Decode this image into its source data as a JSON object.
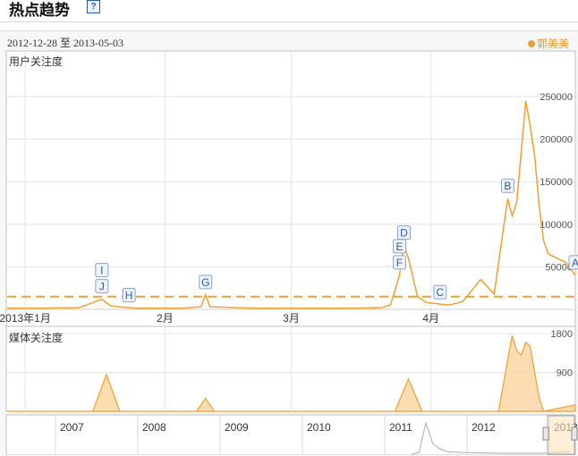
{
  "header": {
    "title": "热点趋势",
    "help_icon": "question-icon"
  },
  "date_range": "2012-12-28 至 2013-05-03",
  "legend": {
    "label": "郭美美",
    "color": "#f0a030"
  },
  "chart_data": [
    {
      "type": "line",
      "title": "用户关注度",
      "x_ticks": [
        "2013年1月",
        "2月",
        "3月",
        "4月"
      ],
      "y_ticks": [
        50000,
        100000,
        150000,
        200000,
        250000
      ],
      "ylim": [
        0,
        250000
      ],
      "grid": true,
      "series": [
        {
          "name": "郭美美",
          "color": "#f0a030",
          "x": [
            "2012-12-28",
            "2013-01-05",
            "2013-01-13",
            "2013-01-18",
            "2013-01-20",
            "2013-01-25",
            "2013-02-05",
            "2013-02-09",
            "2013-02-10",
            "2013-02-11",
            "2013-02-20",
            "2013-03-05",
            "2013-03-15",
            "2013-03-21",
            "2013-03-23",
            "2013-03-25",
            "2013-03-26",
            "2013-03-27",
            "2013-03-29",
            "2013-03-31",
            "2013-04-05",
            "2013-04-08",
            "2013-04-10",
            "2013-04-12",
            "2013-04-15",
            "2013-04-18",
            "2013-04-19",
            "2013-04-20",
            "2013-04-22",
            "2013-04-23",
            "2013-04-24",
            "2013-04-25",
            "2013-04-26",
            "2013-04-27",
            "2013-04-29",
            "2013-05-01",
            "2013-05-03"
          ],
          "values": [
            1500,
            1500,
            2000,
            12000,
            4000,
            1500,
            1500,
            3000,
            17000,
            3000,
            1500,
            1500,
            1500,
            2000,
            5000,
            40000,
            75000,
            60000,
            15000,
            8000,
            5000,
            9000,
            22000,
            35000,
            18000,
            130000,
            110000,
            125000,
            245000,
            215000,
            180000,
            120000,
            80000,
            65000,
            60000,
            55000,
            40000
          ]
        }
      ],
      "average_line": {
        "value": 15000,
        "style": "dashed"
      },
      "annotations": [
        {
          "label": "J",
          "date": "2013-01-18"
        },
        {
          "label": "I",
          "date": "2013-01-18"
        },
        {
          "label": "H",
          "date": "2013-01-24"
        },
        {
          "label": "G",
          "date": "2013-02-10"
        },
        {
          "label": "F",
          "date": "2013-03-25"
        },
        {
          "label": "E",
          "date": "2013-03-25"
        },
        {
          "label": "D",
          "date": "2013-03-26"
        },
        {
          "label": "C",
          "date": "2013-04-03"
        },
        {
          "label": "B",
          "date": "2013-04-18"
        },
        {
          "label": "A",
          "date": "2013-05-03"
        }
      ]
    },
    {
      "type": "area",
      "title": "媒体关注度",
      "y_ticks": [
        900,
        1800
      ],
      "ylim": [
        0,
        1800
      ],
      "grid": true,
      "series": [
        {
          "name": "郭美美",
          "color": "#f0a030",
          "x": [
            "2012-12-28",
            "2013-01-16",
            "2013-01-19",
            "2013-01-22",
            "2013-02-08",
            "2013-02-10",
            "2013-02-12",
            "2013-03-24",
            "2013-03-27",
            "2013-03-30",
            "2013-04-16",
            "2013-04-18",
            "2013-04-19",
            "2013-04-20",
            "2013-04-21",
            "2013-04-22",
            "2013-04-23",
            "2013-04-24",
            "2013-04-25",
            "2013-04-26",
            "2013-05-03"
          ],
          "values": [
            0,
            0,
            850,
            0,
            0,
            300,
            0,
            0,
            750,
            0,
            0,
            1200,
            1750,
            1400,
            1300,
            1600,
            1500,
            900,
            300,
            0,
            150
          ]
        }
      ]
    },
    {
      "type": "area",
      "title": "",
      "x_ticks": [
        "2007",
        "2008",
        "2009",
        "2010",
        "2011",
        "2012",
        "2013"
      ],
      "series": [
        {
          "name": "郭美美",
          "color": "#aaaaaa",
          "x": [
            "2011-05",
            "2011-06",
            "2011-07",
            "2011-08",
            "2011-09",
            "2011-10",
            "2011-12",
            "2012-06",
            "2012-12",
            "2013-04"
          ],
          "values": [
            0,
            2,
            35,
            12,
            6,
            3,
            2,
            1,
            1,
            3
          ]
        }
      ]
    }
  ]
}
